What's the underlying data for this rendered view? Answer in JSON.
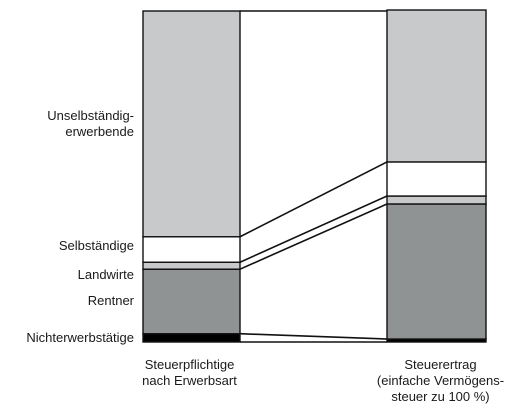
{
  "chart_data": {
    "type": "stacked-bar-comparison",
    "columns": [
      {
        "key": "taxpayers",
        "label_lines": [
          "Steuerpflichtige",
          "nach Erwerbsart"
        ]
      },
      {
        "key": "revenue",
        "label_lines": [
          "Steuerertrag",
          "(einfache Vermögens-",
          "steuer zu 100 %)"
        ]
      }
    ],
    "unit": "%",
    "stack_order_bottom_up": [
      "nichterwerbstaetige",
      "rentner",
      "landwirte",
      "selbstaendige",
      "unselbstaendige"
    ],
    "series": [
      {
        "key": "unselbstaendige",
        "label_lines": [
          "Unselbständig-",
          "erwerbende"
        ],
        "color": "#c8c9cb",
        "values": [
          68.2,
          45.9
        ]
      },
      {
        "key": "selbstaendige",
        "label_lines": [
          "Selbständige"
        ],
        "color": "#ffffff",
        "values": [
          7.7,
          10.3
        ]
      },
      {
        "key": "landwirte",
        "label_lines": [
          "Landwirte"
        ],
        "color": "#c8c9cb",
        "values": [
          2.1,
          2.4
        ]
      },
      {
        "key": "rentner",
        "label_lines": [
          "Rentner"
        ],
        "color": "#909393",
        "values": [
          19.5,
          40.8
        ]
      },
      {
        "key": "nichterwerbstaetige",
        "label_lines": [
          "Nichterwerbstätige"
        ],
        "color": "#000000",
        "values": [
          2.5,
          0.9
        ]
      }
    ],
    "ylim": [
      0,
      100
    ]
  }
}
